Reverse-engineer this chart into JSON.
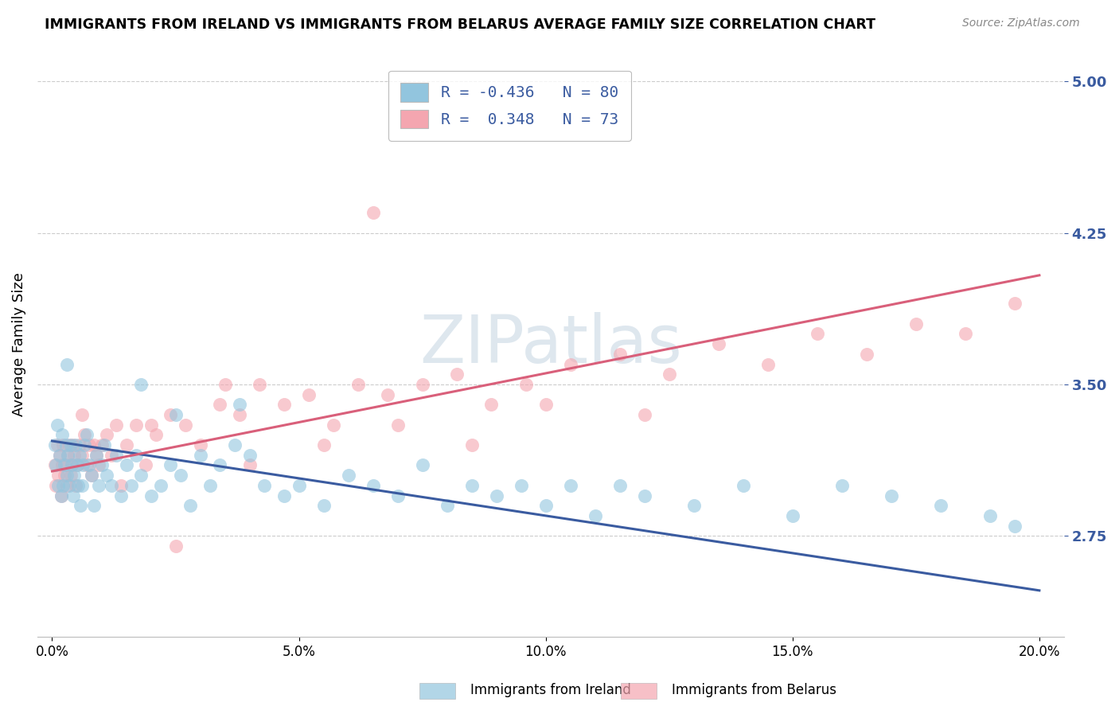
{
  "title": "IMMIGRANTS FROM IRELAND VS IMMIGRANTS FROM BELARUS AVERAGE FAMILY SIZE CORRELATION CHART",
  "source": "Source: ZipAtlas.com",
  "ylabel": "Average Family Size",
  "xlabel_ticks": [
    "0.0%",
    "5.0%",
    "10.0%",
    "15.0%",
    "20.0%"
  ],
  "xlabel_vals": [
    0.0,
    5.0,
    10.0,
    15.0,
    20.0
  ],
  "yticks": [
    2.75,
    3.5,
    4.25,
    5.0
  ],
  "ylim": [
    2.25,
    5.15
  ],
  "xlim": [
    -0.3,
    20.5
  ],
  "ireland_color": "#92c5de",
  "belarus_color": "#f4a6b0",
  "ireland_line_color": "#3a5ba0",
  "belarus_line_color": "#d95f7a",
  "ireland_R": -0.436,
  "ireland_N": 80,
  "belarus_R": 0.348,
  "belarus_N": 73,
  "watermark": "ZIPatlas",
  "ireland_trend_start": 3.22,
  "ireland_trend_end": 2.48,
  "belarus_trend_start": 3.07,
  "belarus_trend_end": 4.04,
  "ireland_scatter_x": [
    0.05,
    0.08,
    0.1,
    0.12,
    0.15,
    0.18,
    0.2,
    0.22,
    0.25,
    0.28,
    0.3,
    0.32,
    0.35,
    0.38,
    0.4,
    0.42,
    0.45,
    0.48,
    0.5,
    0.52,
    0.55,
    0.58,
    0.6,
    0.62,
    0.65,
    0.7,
    0.75,
    0.8,
    0.85,
    0.9,
    0.95,
    1.0,
    1.05,
    1.1,
    1.2,
    1.3,
    1.4,
    1.5,
    1.6,
    1.7,
    1.8,
    2.0,
    2.2,
    2.4,
    2.6,
    2.8,
    3.0,
    3.2,
    3.4,
    3.7,
    4.0,
    4.3,
    4.7,
    5.0,
    5.5,
    6.0,
    6.5,
    7.0,
    7.5,
    8.0,
    8.5,
    9.0,
    9.5,
    10.0,
    10.5,
    11.0,
    11.5,
    12.0,
    13.0,
    14.0,
    15.0,
    16.0,
    17.0,
    18.0,
    19.0,
    19.5,
    3.8,
    2.5,
    1.8,
    0.3
  ],
  "ireland_scatter_y": [
    3.2,
    3.1,
    3.3,
    3.0,
    3.15,
    2.95,
    3.25,
    3.0,
    3.1,
    3.2,
    3.05,
    3.15,
    3.0,
    3.2,
    3.1,
    2.95,
    3.05,
    3.2,
    3.1,
    3.0,
    3.15,
    2.9,
    3.0,
    3.1,
    3.2,
    3.25,
    3.1,
    3.05,
    2.9,
    3.15,
    3.0,
    3.1,
    3.2,
    3.05,
    3.0,
    3.15,
    2.95,
    3.1,
    3.0,
    3.15,
    3.05,
    2.95,
    3.0,
    3.1,
    3.05,
    2.9,
    3.15,
    3.0,
    3.1,
    3.2,
    3.15,
    3.0,
    2.95,
    3.0,
    2.9,
    3.05,
    3.0,
    2.95,
    3.1,
    2.9,
    3.0,
    2.95,
    3.0,
    2.9,
    3.0,
    2.85,
    3.0,
    2.95,
    2.9,
    3.0,
    2.85,
    3.0,
    2.95,
    2.9,
    2.85,
    2.8,
    3.4,
    3.35,
    3.5,
    3.6
  ],
  "belarus_scatter_x": [
    0.05,
    0.08,
    0.1,
    0.12,
    0.15,
    0.18,
    0.2,
    0.22,
    0.25,
    0.28,
    0.3,
    0.32,
    0.35,
    0.38,
    0.4,
    0.42,
    0.45,
    0.48,
    0.5,
    0.55,
    0.6,
    0.65,
    0.7,
    0.75,
    0.8,
    0.85,
    0.9,
    0.95,
    1.0,
    1.1,
    1.2,
    1.3,
    1.5,
    1.7,
    1.9,
    2.1,
    2.4,
    2.7,
    3.0,
    3.4,
    3.8,
    4.2,
    4.7,
    5.2,
    5.7,
    6.2,
    6.8,
    7.5,
    8.2,
    8.9,
    9.6,
    10.5,
    11.5,
    12.5,
    13.5,
    14.5,
    15.5,
    16.5,
    17.5,
    18.5,
    19.5,
    0.6,
    1.4,
    2.5,
    4.0,
    5.5,
    7.0,
    8.5,
    10.0,
    12.0,
    3.5,
    2.0,
    6.5
  ],
  "belarus_scatter_y": [
    3.1,
    3.0,
    3.2,
    3.05,
    3.15,
    2.95,
    3.1,
    3.2,
    3.05,
    3.1,
    3.0,
    3.15,
    3.2,
    3.05,
    3.1,
    3.2,
    3.15,
    3.0,
    3.1,
    3.2,
    3.15,
    3.25,
    3.1,
    3.2,
    3.05,
    3.2,
    3.15,
    3.1,
    3.2,
    3.25,
    3.15,
    3.3,
    3.2,
    3.3,
    3.1,
    3.25,
    3.35,
    3.3,
    3.2,
    3.4,
    3.35,
    3.5,
    3.4,
    3.45,
    3.3,
    3.5,
    3.45,
    3.5,
    3.55,
    3.4,
    3.5,
    3.6,
    3.65,
    3.55,
    3.7,
    3.6,
    3.75,
    3.65,
    3.8,
    3.75,
    3.9,
    3.35,
    3.0,
    2.7,
    3.1,
    3.2,
    3.3,
    3.2,
    3.4,
    3.35,
    3.5,
    3.3,
    4.35
  ]
}
